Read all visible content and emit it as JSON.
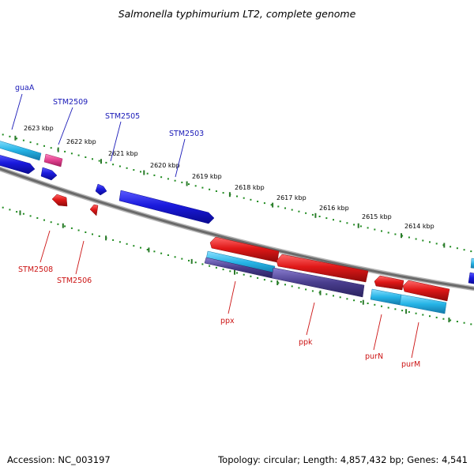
{
  "title": "Salmonella typhimurium LT2, complete genome",
  "footer": {
    "accession": "Accession: NC_003197",
    "topology": "Topology: circular; Length: 4,857,432 bp; Genes: 4,541"
  },
  "colors": {
    "backbone": "#888888",
    "forward_gene": "#1a1add",
    "reverse_gene": "#e01818",
    "cog_cyan": "#26b4e6",
    "cog_purple": "#4a3e8e",
    "cog_pink": "#e0408e",
    "forward_label": "#1a1ab8",
    "reverse_label": "#cc1414",
    "tick_major": "#2a7a2a",
    "tick_minor": "#1f8a1f"
  },
  "scale": {
    "kbp_labels": [
      "2623 kbp",
      "2622 kbp",
      "2621 kbp",
      "2620 kbp",
      "2619 kbp",
      "2618 kbp",
      "2617 kbp",
      "2616 kbp",
      "2615 kbp",
      "2614 kbp"
    ]
  },
  "forward_labels": [
    "guaA",
    "STM2509",
    "STM2505",
    "STM2503"
  ],
  "reverse_labels": [
    "STM2508",
    "STM2506",
    "ppx",
    "ppk",
    "purN",
    "purM"
  ]
}
